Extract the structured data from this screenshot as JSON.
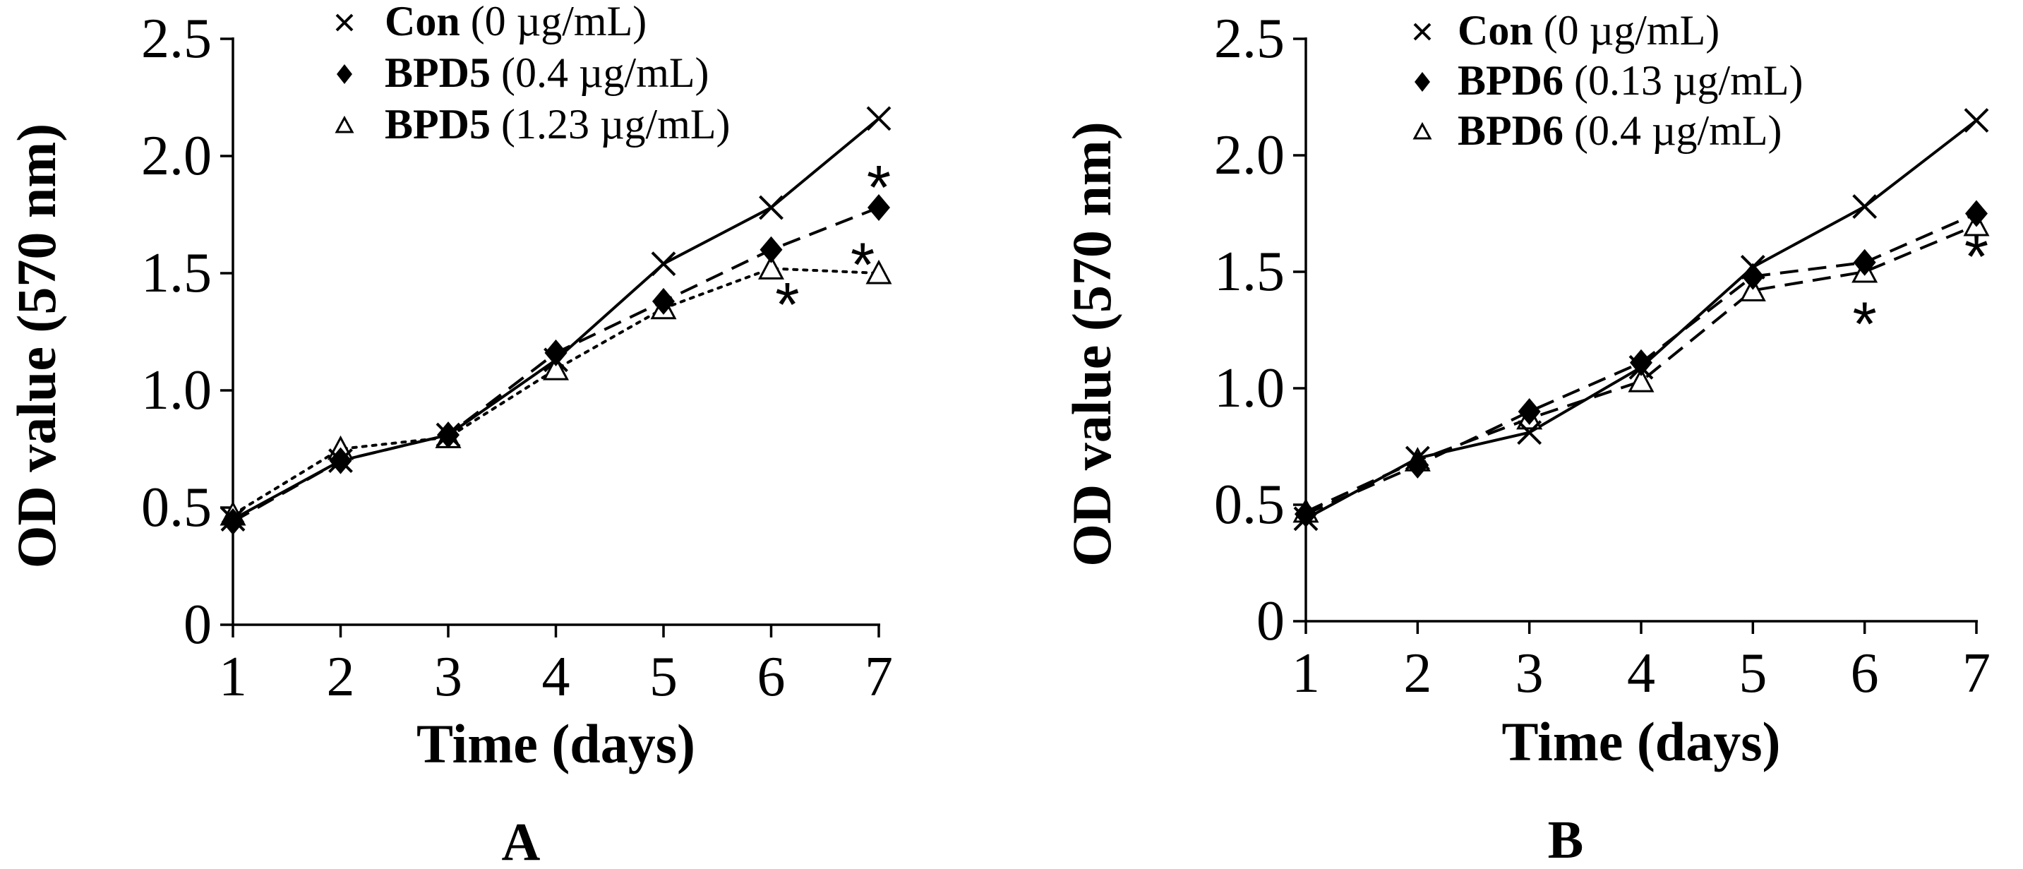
{
  "chart_data": [
    {
      "type": "line",
      "panel_label": "A",
      "title": "",
      "xlabel": "Time (days)",
      "ylabel": "OD value (570 nm)",
      "x": [
        1,
        2,
        3,
        4,
        5,
        6,
        7
      ],
      "xticks": [
        "1",
        "2",
        "3",
        "4",
        "5",
        "6",
        "7"
      ],
      "yticks": [
        "0",
        "0.5",
        "1.0",
        "1.5",
        "2.0",
        "2.5"
      ],
      "ytick_values": [
        0,
        0.5,
        1.0,
        1.5,
        2.0,
        2.5
      ],
      "ylim": [
        0,
        2.5
      ],
      "legend_position": "top",
      "series": [
        {
          "name": "Con",
          "conc": "(0 µg/mL)",
          "marker": "cross",
          "line": "solid",
          "values": [
            0.45,
            0.7,
            0.81,
            1.13,
            1.54,
            1.78,
            2.16
          ]
        },
        {
          "name": "BPD5",
          "conc": "(0.4 µg/mL)",
          "marker": "diamond",
          "line": "dashed",
          "values": [
            0.44,
            0.7,
            0.81,
            1.16,
            1.38,
            1.6,
            1.78
          ]
        },
        {
          "name": "BPD5",
          "conc": "(1.23 µg/mL)",
          "marker": "triangle",
          "line": "dotted",
          "values": [
            0.47,
            0.75,
            0.8,
            1.09,
            1.35,
            1.52,
            1.5
          ]
        }
      ],
      "annotations": [
        {
          "text": "*",
          "x": 6.15,
          "y": 1.42
        },
        {
          "text": "*",
          "x": 6.85,
          "y": 1.59
        },
        {
          "text": "*",
          "x": 7.0,
          "y": 1.92
        }
      ]
    },
    {
      "type": "line",
      "panel_label": "B",
      "title": "",
      "xlabel": "Time (days)",
      "ylabel": "OD value (570 nm)",
      "x": [
        1,
        2,
        3,
        4,
        5,
        6,
        7
      ],
      "xticks": [
        "1",
        "2",
        "3",
        "4",
        "5",
        "6",
        "7"
      ],
      "yticks": [
        "0",
        "0.5",
        "1.0",
        "1.5",
        "2.0",
        "2.5"
      ],
      "ytick_values": [
        0,
        0.5,
        1.0,
        1.5,
        2.0,
        2.5
      ],
      "ylim": [
        0,
        2.5
      ],
      "legend_position": "top",
      "series": [
        {
          "name": "Con",
          "conc": "(0 µg/mL)",
          "marker": "cross",
          "line": "solid",
          "values": [
            0.44,
            0.7,
            0.81,
            1.09,
            1.52,
            1.78,
            2.15
          ]
        },
        {
          "name": "BPD6",
          "conc": "(0.13 µg/mL)",
          "marker": "diamond",
          "line": "dashed",
          "values": [
            0.46,
            0.67,
            0.9,
            1.11,
            1.48,
            1.54,
            1.75
          ]
        },
        {
          "name": "BPD6",
          "conc": "(0.4 µg/mL)",
          "marker": "triangle",
          "line": "dashed",
          "values": [
            0.47,
            0.69,
            0.87,
            1.03,
            1.42,
            1.5,
            1.7
          ]
        }
      ],
      "annotations": [
        {
          "text": "*",
          "x": 6.0,
          "y": 1.33
        },
        {
          "text": "*",
          "x": 7.0,
          "y": 1.62
        }
      ]
    }
  ]
}
